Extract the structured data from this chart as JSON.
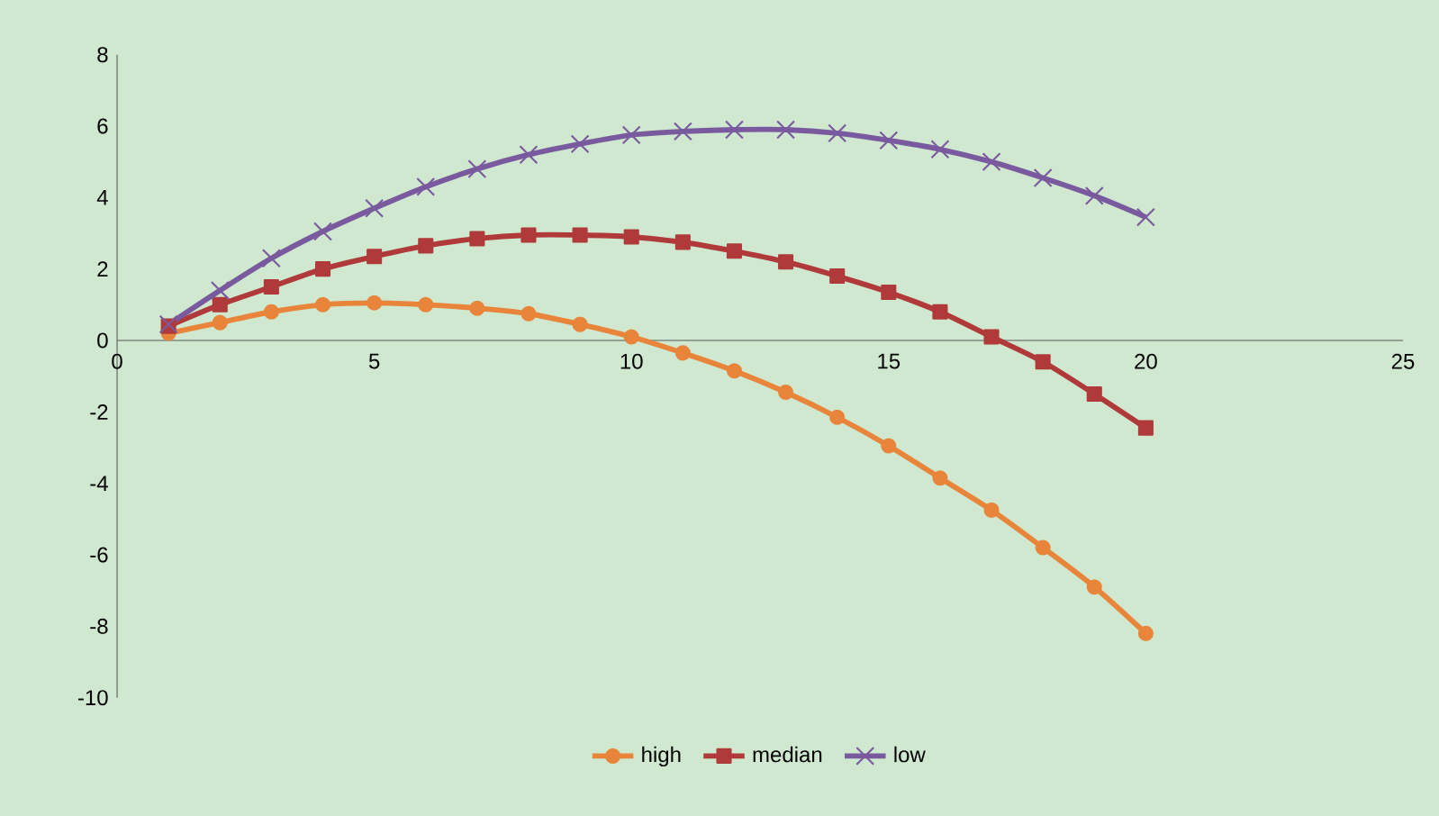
{
  "chart_data": {
    "type": "line",
    "x": [
      1,
      2,
      3,
      4,
      5,
      6,
      7,
      8,
      9,
      10,
      11,
      12,
      13,
      14,
      15,
      16,
      17,
      18,
      19,
      20
    ],
    "series": [
      {
        "name": "high",
        "color": "#e8853a",
        "marker": "circle",
        "values": [
          0.2,
          0.5,
          0.8,
          1.0,
          1.05,
          1.0,
          0.9,
          0.75,
          0.45,
          0.1,
          -0.35,
          -0.85,
          -1.45,
          -2.15,
          -2.95,
          -3.85,
          -4.75,
          -5.8,
          -6.9,
          -8.2
        ]
      },
      {
        "name": "median",
        "color": "#b03a3a",
        "marker": "square",
        "values": [
          0.4,
          1.0,
          1.5,
          2.0,
          2.35,
          2.65,
          2.85,
          2.95,
          2.95,
          2.9,
          2.75,
          2.5,
          2.2,
          1.8,
          1.35,
          0.8,
          0.1,
          -0.6,
          -1.5,
          -2.45
        ]
      },
      {
        "name": "low",
        "color": "#7a5a9e",
        "marker": "cross",
        "values": [
          0.45,
          1.4,
          2.3,
          3.05,
          3.7,
          4.3,
          4.8,
          5.2,
          5.5,
          5.75,
          5.85,
          5.9,
          5.9,
          5.8,
          5.6,
          5.35,
          5.0,
          4.55,
          4.05,
          3.45
        ]
      }
    ],
    "xlim": [
      0,
      25
    ],
    "xticks": [
      0,
      5,
      10,
      15,
      20,
      25
    ],
    "ylim": [
      -10,
      8
    ],
    "yticks": [
      -10,
      -8,
      -6,
      -4,
      -2,
      0,
      2,
      4,
      6,
      8
    ],
    "grid": false,
    "legend": "bottom"
  }
}
